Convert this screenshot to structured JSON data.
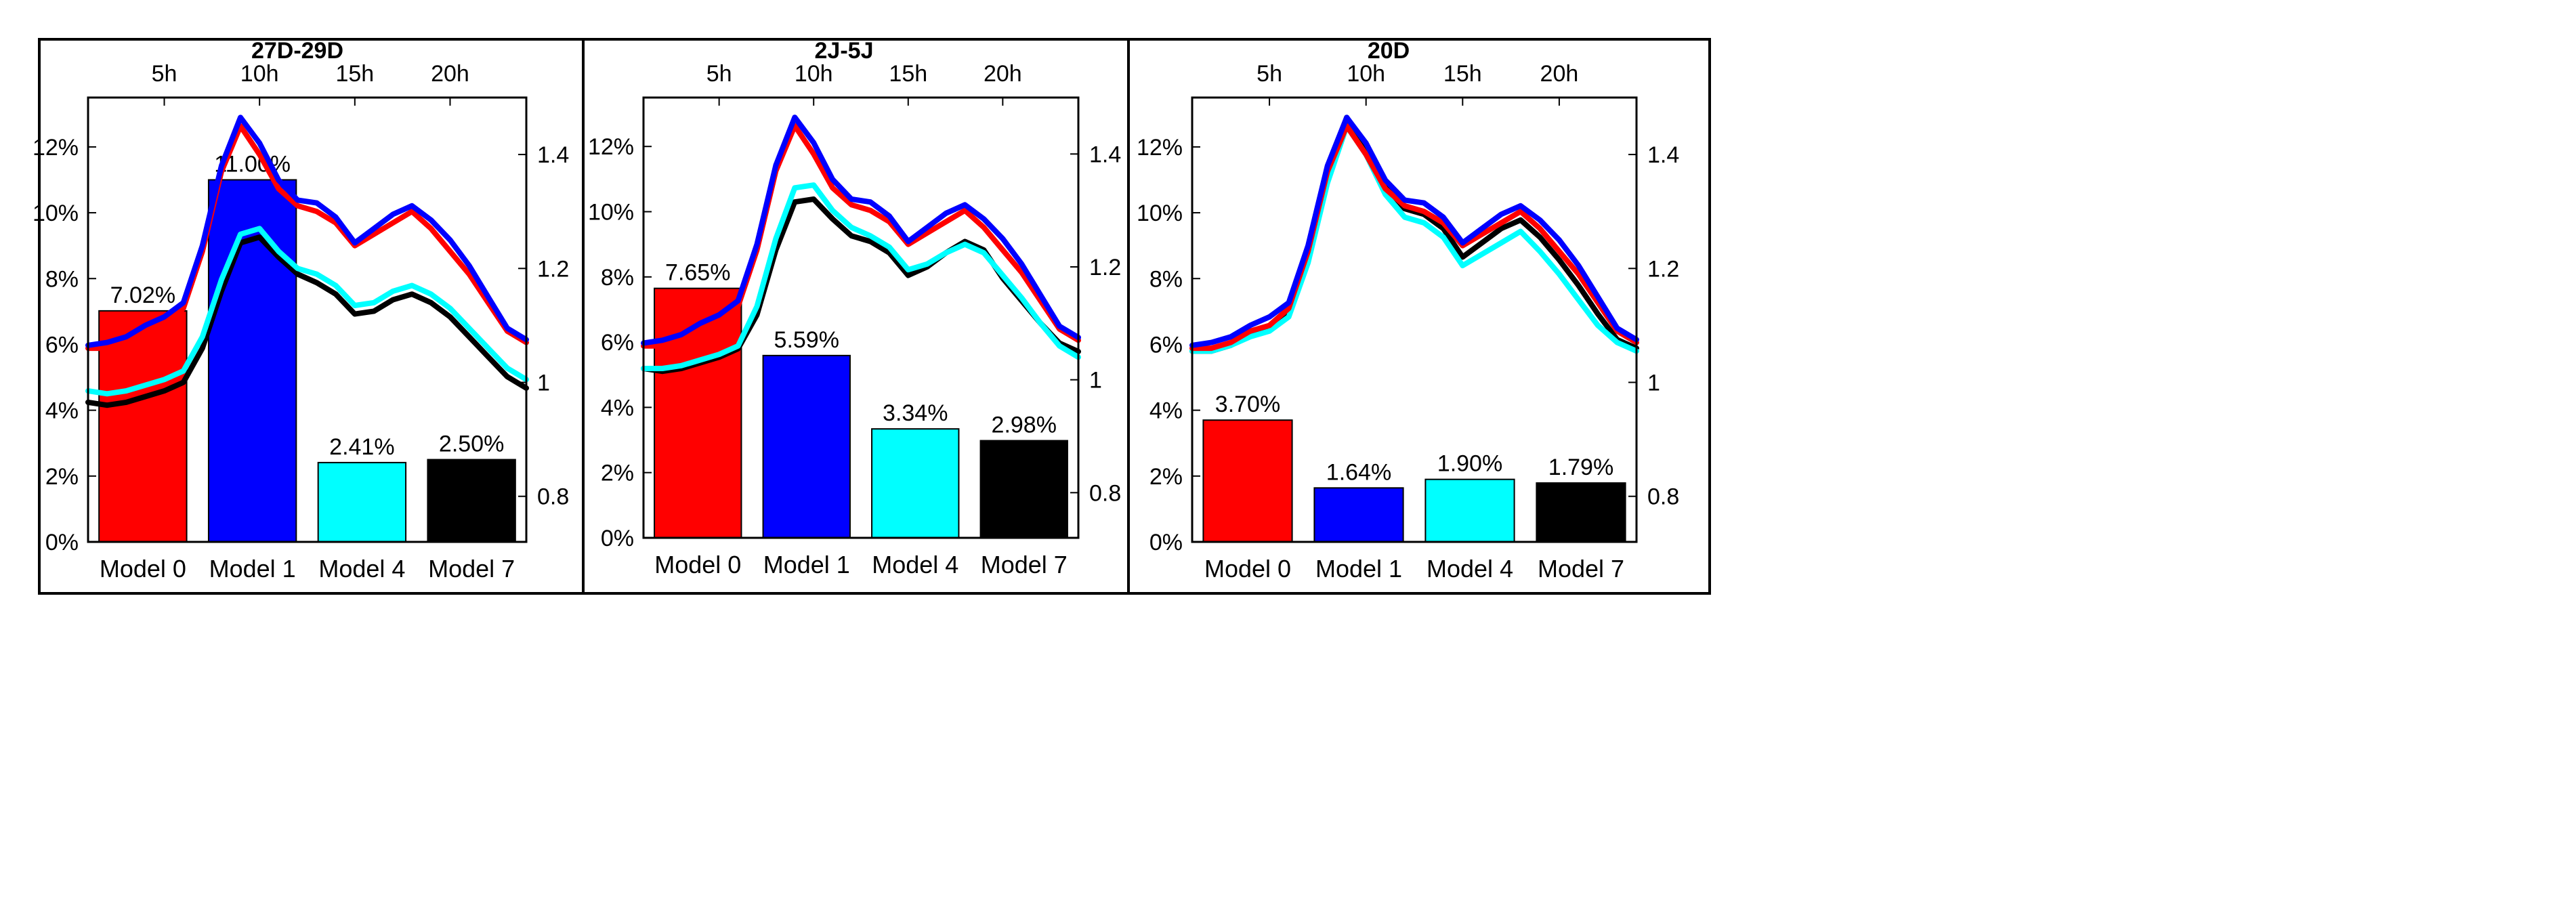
{
  "chart_data": [
    {
      "type": "bar",
      "title": "27D-29D",
      "categories": [
        "Model 0",
        "Model 1",
        "Model 4",
        "Model 7"
      ],
      "values": [
        7.02,
        11.0,
        2.41,
        2.5
      ],
      "value_labels": [
        "7.02%",
        "11.00%",
        "2.41%",
        "2.50%"
      ],
      "ylim": [
        0,
        13.5
      ],
      "yticks": [
        0,
        2,
        4,
        6,
        8,
        10,
        12
      ],
      "ytick_labels": [
        "0%",
        "2%",
        "4%",
        "6%",
        "8%",
        "10%",
        "12%"
      ],
      "line_overlay": {
        "type": "line",
        "x_range": [
          1,
          24
        ],
        "xticks": [
          5,
          10,
          15,
          20
        ],
        "xtick_labels": [
          "5h",
          "10h",
          "15h",
          "20h"
        ],
        "y_range": [
          0.72,
          1.5
        ],
        "yticks": [
          0.8,
          1,
          1.2,
          1.4
        ],
        "ytick_labels": [
          "0.8",
          "1",
          "1.2",
          "1.4"
        ],
        "series": [
          {
            "name": "Model 0",
            "color": "#ff0000",
            "values": [
              1.06,
              1.06,
              1.07,
              1.09,
              1.1,
              1.13,
              1.23,
              1.37,
              1.45,
              1.4,
              1.34,
              1.31,
              1.3,
              1.28,
              1.24,
              1.26,
              1.28,
              1.3,
              1.27,
              1.23,
              1.19,
              1.14,
              1.09,
              1.07
            ]
          },
          {
            "name": "Model 1",
            "color": "#0000ff",
            "values": [
              1.065,
              1.07,
              1.08,
              1.1,
              1.115,
              1.14,
              1.24,
              1.38,
              1.465,
              1.42,
              1.355,
              1.32,
              1.315,
              1.29,
              1.245,
              1.27,
              1.295,
              1.31,
              1.285,
              1.25,
              1.205,
              1.15,
              1.095,
              1.075
            ]
          },
          {
            "name": "Model 4",
            "color": "#00ffff",
            "values": [
              0.985,
              0.98,
              0.985,
              0.995,
              1.005,
              1.02,
              1.08,
              1.18,
              1.26,
              1.27,
              1.23,
              1.2,
              1.19,
              1.17,
              1.135,
              1.14,
              1.16,
              1.17,
              1.155,
              1.13,
              1.095,
              1.06,
              1.025,
              1.005
            ]
          },
          {
            "name": "Model 7",
            "color": "#000000",
            "values": [
              0.965,
              0.96,
              0.965,
              0.975,
              0.985,
              1.0,
              1.06,
              1.16,
              1.245,
              1.255,
              1.22,
              1.19,
              1.175,
              1.155,
              1.12,
              1.125,
              1.145,
              1.155,
              1.14,
              1.115,
              1.08,
              1.045,
              1.01,
              0.99
            ]
          }
        ]
      }
    },
    {
      "type": "bar",
      "title": "2J-5J",
      "categories": [
        "Model 0",
        "Model 1",
        "Model 4",
        "Model 7"
      ],
      "values": [
        7.65,
        5.59,
        3.34,
        2.98
      ],
      "value_labels": [
        "7.65%",
        "5.59%",
        "3.34%",
        "2.98%"
      ],
      "ylim": [
        0,
        13.5
      ],
      "yticks": [
        0,
        2,
        4,
        6,
        8,
        10,
        12
      ],
      "ytick_labels": [
        "0%",
        "2%",
        "4%",
        "6%",
        "8%",
        "10%",
        "12%"
      ],
      "line_overlay": {
        "type": "line",
        "x_range": [
          1,
          24
        ],
        "xticks": [
          5,
          10,
          15,
          20
        ],
        "xtick_labels": [
          "5h",
          "10h",
          "15h",
          "20h"
        ],
        "y_range": [
          0.72,
          1.5
        ],
        "yticks": [
          0.8,
          1,
          1.2,
          1.4
        ],
        "ytick_labels": [
          "0.8",
          "1",
          "1.2",
          "1.4"
        ],
        "series": [
          {
            "name": "Model 0",
            "color": "#ff0000",
            "values": [
              1.06,
              1.06,
              1.07,
              1.09,
              1.1,
              1.13,
              1.23,
              1.37,
              1.45,
              1.4,
              1.34,
              1.31,
              1.3,
              1.28,
              1.24,
              1.26,
              1.28,
              1.3,
              1.27,
              1.23,
              1.19,
              1.14,
              1.09,
              1.07
            ]
          },
          {
            "name": "Model 1",
            "color": "#0000ff",
            "values": [
              1.065,
              1.07,
              1.08,
              1.1,
              1.115,
              1.14,
              1.24,
              1.38,
              1.465,
              1.42,
              1.355,
              1.32,
              1.315,
              1.29,
              1.245,
              1.27,
              1.295,
              1.31,
              1.285,
              1.25,
              1.205,
              1.15,
              1.095,
              1.075
            ]
          },
          {
            "name": "Model 4",
            "color": "#00ffff",
            "values": [
              1.02,
              1.02,
              1.025,
              1.035,
              1.045,
              1.06,
              1.13,
              1.25,
              1.34,
              1.345,
              1.3,
              1.27,
              1.255,
              1.235,
              1.195,
              1.205,
              1.225,
              1.24,
              1.225,
              1.185,
              1.145,
              1.1,
              1.06,
              1.04
            ]
          },
          {
            "name": "Model 7",
            "color": "#000000",
            "values": [
              1.02,
              1.015,
              1.02,
              1.03,
              1.04,
              1.055,
              1.115,
              1.23,
              1.315,
              1.32,
              1.285,
              1.255,
              1.245,
              1.225,
              1.185,
              1.2,
              1.225,
              1.245,
              1.23,
              1.18,
              1.14,
              1.1,
              1.065,
              1.05
            ]
          }
        ]
      }
    },
    {
      "type": "bar",
      "title": "20D",
      "categories": [
        "Model 0",
        "Model 1",
        "Model 4",
        "Model 7"
      ],
      "values": [
        3.7,
        1.64,
        1.9,
        1.79
      ],
      "value_labels": [
        "3.70%",
        "1.64%",
        "1.90%",
        "1.79%"
      ],
      "ylim": [
        0,
        13.5
      ],
      "yticks": [
        0,
        2,
        4,
        6,
        8,
        10,
        12
      ],
      "ytick_labels": [
        "0%",
        "2%",
        "4%",
        "6%",
        "8%",
        "10%",
        "12%"
      ],
      "line_overlay": {
        "type": "line",
        "x_range": [
          1,
          24
        ],
        "xticks": [
          5,
          10,
          15,
          20
        ],
        "xtick_labels": [
          "5h",
          "10h",
          "15h",
          "20h"
        ],
        "y_range": [
          0.72,
          1.5
        ],
        "yticks": [
          0.8,
          1,
          1.2,
          1.4
        ],
        "ytick_labels": [
          "0.8",
          "1",
          "1.2",
          "1.4"
        ],
        "series": [
          {
            "name": "Model 0",
            "color": "#ff0000",
            "values": [
              1.06,
              1.06,
              1.07,
              1.09,
              1.1,
              1.13,
              1.23,
              1.37,
              1.45,
              1.4,
              1.34,
              1.31,
              1.3,
              1.28,
              1.24,
              1.26,
              1.28,
              1.3,
              1.27,
              1.23,
              1.19,
              1.14,
              1.09,
              1.07
            ]
          },
          {
            "name": "Model 1",
            "color": "#0000ff",
            "values": [
              1.065,
              1.07,
              1.08,
              1.1,
              1.115,
              1.14,
              1.24,
              1.38,
              1.465,
              1.42,
              1.355,
              1.32,
              1.315,
              1.29,
              1.245,
              1.27,
              1.295,
              1.31,
              1.285,
              1.25,
              1.205,
              1.15,
              1.095,
              1.075
            ]
          },
          {
            "name": "Model 4",
            "color": "#00ffff",
            "values": [
              1.055,
              1.055,
              1.065,
              1.08,
              1.09,
              1.115,
              1.21,
              1.35,
              1.45,
              1.4,
              1.33,
              1.29,
              1.28,
              1.255,
              1.205,
              1.225,
              1.245,
              1.265,
              1.23,
              1.19,
              1.145,
              1.1,
              1.07,
              1.055
            ]
          },
          {
            "name": "Model 7",
            "color": "#000000",
            "values": [
              1.055,
              1.055,
              1.065,
              1.085,
              1.095,
              1.12,
              1.22,
              1.37,
              1.465,
              1.41,
              1.345,
              1.305,
              1.295,
              1.27,
              1.22,
              1.245,
              1.27,
              1.285,
              1.255,
              1.215,
              1.17,
              1.12,
              1.075,
              1.06
            ]
          }
        ]
      }
    }
  ]
}
